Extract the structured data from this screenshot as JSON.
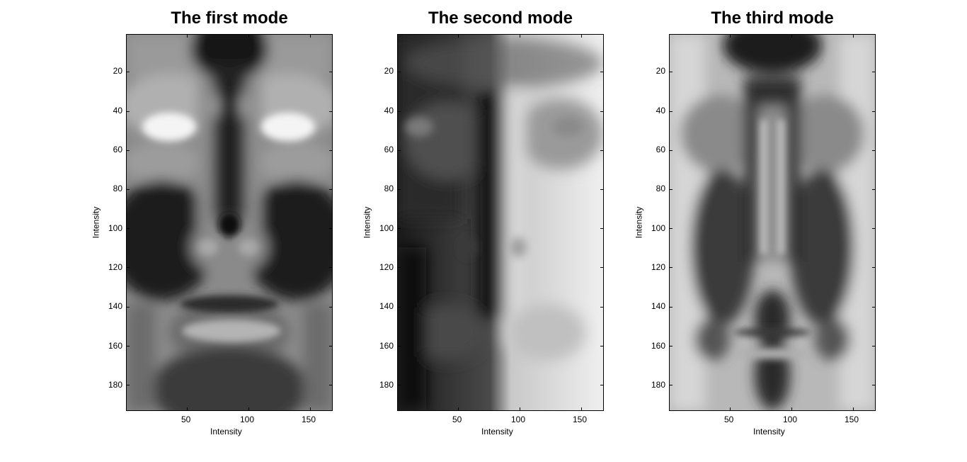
{
  "chart_data": [
    {
      "type": "heatmap",
      "title": "The first mode",
      "xlabel": "Intensity",
      "ylabel": "Intensity",
      "xlim": [
        1,
        168
      ],
      "ylim": [
        193,
        1
      ],
      "xticks": [
        50,
        100,
        150
      ],
      "yticks": [
        20,
        40,
        60,
        80,
        100,
        120,
        140,
        160,
        180
      ],
      "colormap": "gray"
    },
    {
      "type": "heatmap",
      "title": "The second mode",
      "xlabel": "Intensity",
      "ylabel": "Intensity",
      "xlim": [
        1,
        168
      ],
      "ylim": [
        193,
        1
      ],
      "xticks": [
        50,
        100,
        150
      ],
      "yticks": [
        20,
        40,
        60,
        80,
        100,
        120,
        140,
        160,
        180
      ],
      "colormap": "gray"
    },
    {
      "type": "heatmap",
      "title": "The third mode",
      "xlabel": "Intensity",
      "ylabel": "Intensity",
      "xlim": [
        1,
        168
      ],
      "ylim": [
        193,
        1
      ],
      "xticks": [
        50,
        100,
        150
      ],
      "yticks": [
        20,
        40,
        60,
        80,
        100,
        120,
        140,
        160,
        180
      ],
      "colormap": "gray"
    }
  ]
}
